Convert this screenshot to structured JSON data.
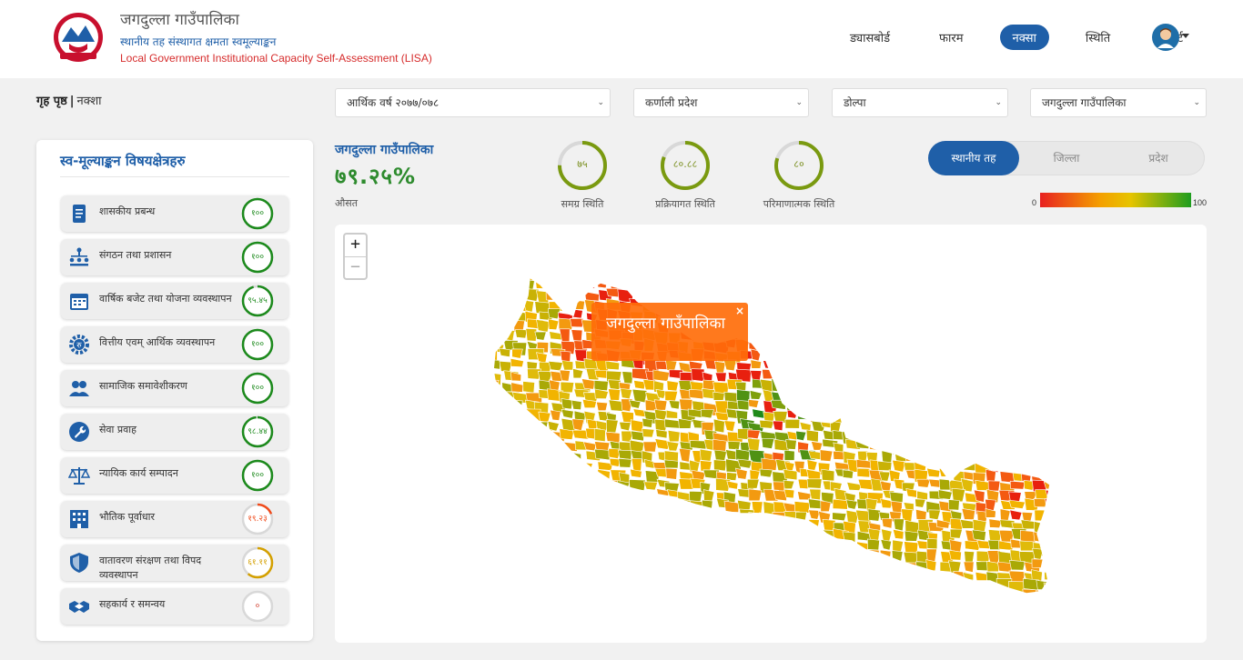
{
  "header": {
    "title": "जगदुल्ला गाउँपालिका",
    "subtitle": "स्थानीय तह संस्थागत क्षमता स्वमूल्याङ्कन",
    "title_en": "Local Government Institutional Capacity Self-Assessment (LISA)",
    "nav": [
      "ड्यासबोर्ड",
      "फारम",
      "नक्सा",
      "स्थिति",
      "रिपोर्ट"
    ],
    "active_nav": "नक्सा"
  },
  "breadcrumb": {
    "home": "गृह पृष्ठ",
    "current": "नक्शा"
  },
  "filters": {
    "fiscal_year": "आर्थिक वर्ष २०७७/०७८",
    "province": "कर्णाली प्रदेश",
    "district": "डोल्पा",
    "palika": "जगदुल्ला गाउँपालिका"
  },
  "panel": {
    "title": "स्व-मूल्याङ्कन विषयक्षेत्रहरु",
    "areas": [
      {
        "label": "शासकीय प्रबन्ध",
        "score": "१००",
        "pct": 100,
        "icon": "document-list-icon",
        "color": "#1c8a1c"
      },
      {
        "label": "संगठन तथा प्रशासन",
        "score": "१००",
        "pct": 100,
        "icon": "org-chart-icon",
        "color": "#1c8a1c"
      },
      {
        "label": "वार्षिक बजेट तथा योजना व्यवस्थापन",
        "score": "९५.४५",
        "pct": 95.45,
        "icon": "calendar-icon",
        "color": "#1c8a1c"
      },
      {
        "label": "वित्तीय एवम् आर्थिक व्यवस्थापन",
        "score": "१००",
        "pct": 100,
        "icon": "gear-rupee-icon",
        "color": "#1c8a1c"
      },
      {
        "label": "सामाजिक समावेशीकरण",
        "score": "१००",
        "pct": 100,
        "icon": "people-icon",
        "color": "#1c8a1c"
      },
      {
        "label": "सेवा प्रवाह",
        "score": "९८.४४",
        "pct": 98.44,
        "icon": "wrench-icon",
        "color": "#1c8a1c"
      },
      {
        "label": "न्यायिक कार्य सम्पादन",
        "score": "१००",
        "pct": 100,
        "icon": "scales-icon",
        "color": "#1c8a1c"
      },
      {
        "label": "भौतिक पूर्वाधार",
        "score": "१९.२३",
        "pct": 19.23,
        "icon": "building-icon",
        "color": "#f04a1a"
      },
      {
        "label": "वातावरण संरक्षण तथा विपद व्यवस्थापन",
        "score": "६१.११",
        "pct": 61.11,
        "icon": "shield-icon",
        "color": "#d4a000"
      },
      {
        "label": "सहकार्य र समन्वय",
        "score": "०",
        "pct": 0,
        "icon": "handshake-icon",
        "color": "#c0c0c0"
      }
    ]
  },
  "summary": {
    "name": "जगदुल्ला गाउँपालिका",
    "score": "७९.२५%",
    "avg_label": "औसत"
  },
  "statuses": [
    {
      "value": "७५",
      "pct": 75,
      "caption": "समग्र स्थिति"
    },
    {
      "value": "८०.८८",
      "pct": 80.88,
      "caption": "प्रक्रियागत स्थिति"
    },
    {
      "value": "८०",
      "pct": 80,
      "caption": "परिमाणात्मक स्थिति"
    }
  ],
  "level_toggle": {
    "options": [
      "स्थानीय तह",
      "जिल्ला",
      "प्रदेश"
    ],
    "active": "स्थानीय तह"
  },
  "legend": {
    "min": "0",
    "max": "100",
    "colors": [
      "#e82020",
      "#f4a000",
      "#e6c400",
      "#1e9d1e"
    ]
  },
  "map": {
    "zoom_in": "+",
    "zoom_out": "−",
    "tooltip": "जगदुल्ला गाउँपालिका",
    "tooltip_close": "×"
  }
}
